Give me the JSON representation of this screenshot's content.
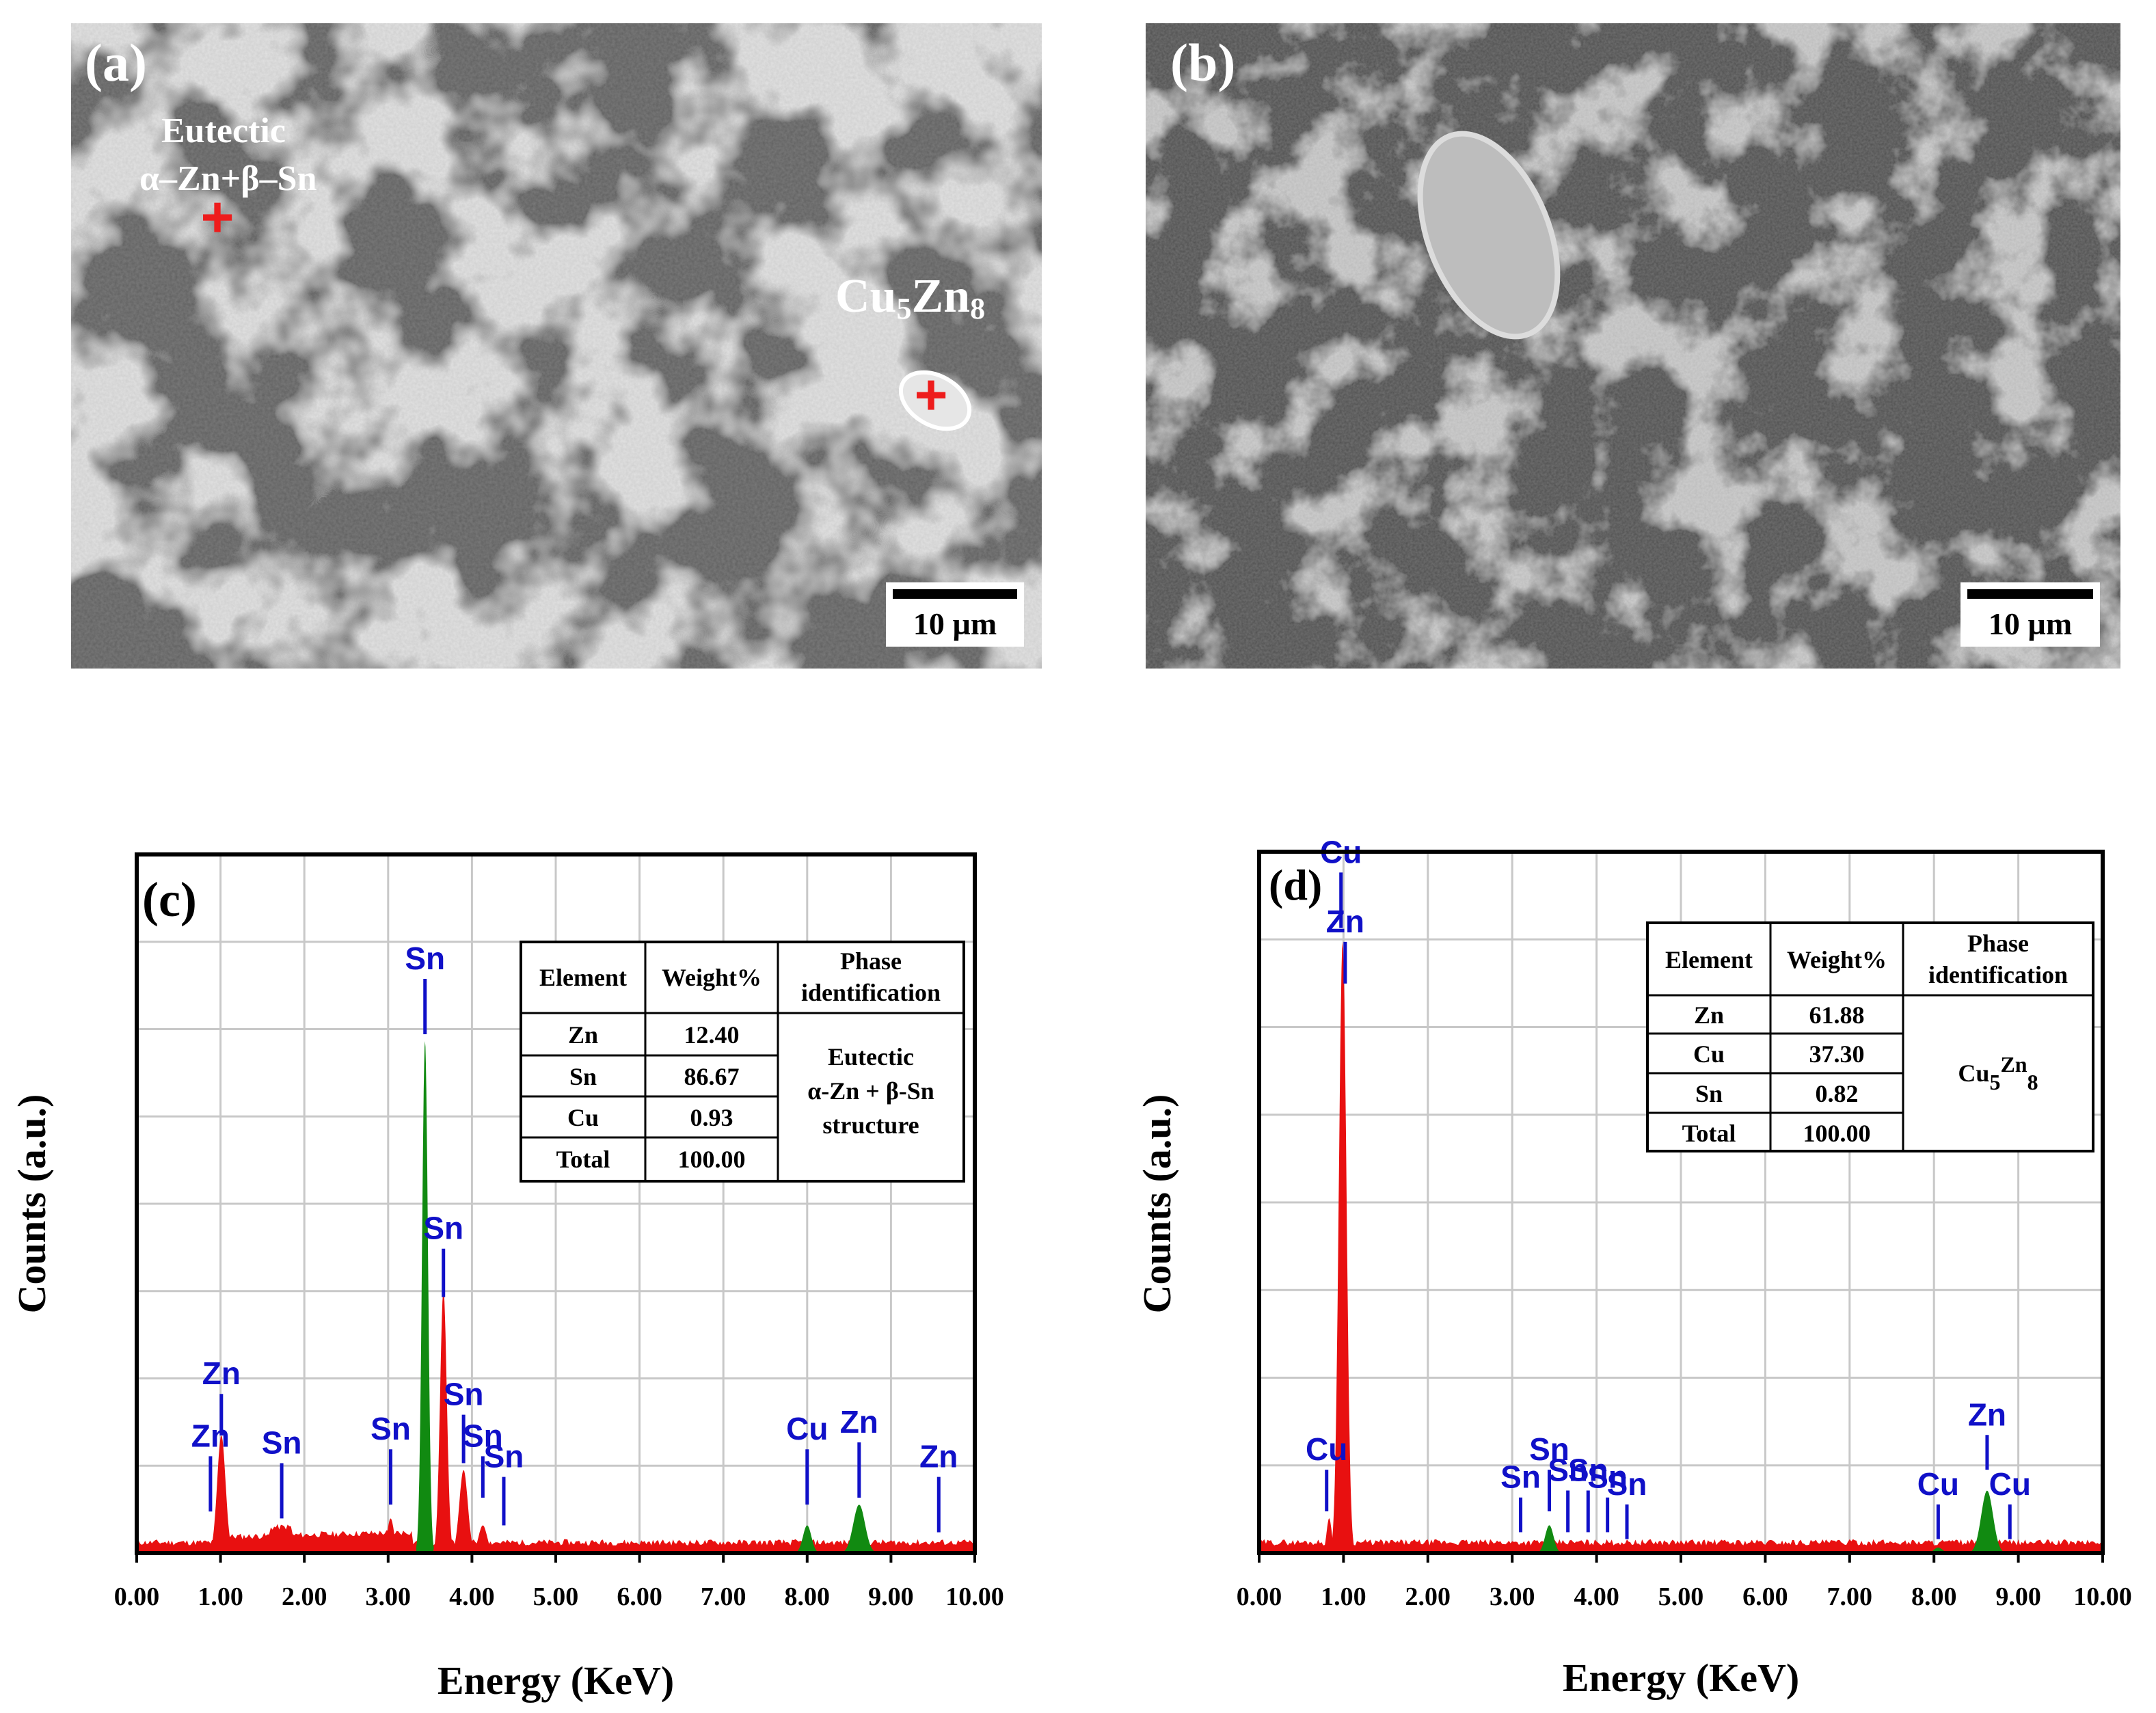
{
  "panels": {
    "a": {
      "label": "(a)",
      "annotation_eutectic": "Eutectic",
      "annotation_phase": "α–Zn+β–Sn",
      "annotation_cu": "Cu",
      "annotation_cu_sub": "5",
      "annotation_zn": "Zn",
      "annotation_zn_sub": "8",
      "marker_symbol": "+",
      "scale_bar": "10 µm"
    },
    "b": {
      "label": "(b)",
      "scale_bar": "10 µm"
    }
  },
  "colors": {
    "main_peak": "#e81010",
    "secondary_peak": "#118a11",
    "peak_marker": "#1010c8",
    "grid": "#c8c8c8"
  },
  "chart_data": [
    {
      "panel": "(c)",
      "type": "area",
      "title": "",
      "xlabel": "Energy (KeV)",
      "ylabel": "Counts (a.u.)",
      "xlim": [
        0,
        10
      ],
      "ylim": [
        0,
        100
      ],
      "xticks": [
        "0.00",
        "1.00",
        "2.00",
        "3.00",
        "4.00",
        "5.00",
        "6.00",
        "7.00",
        "8.00",
        "9.00",
        "10.00"
      ],
      "grid": true,
      "peaks": [
        {
          "energy": 1.01,
          "height": 17,
          "width": 0.05,
          "color": "red"
        },
        {
          "energy": 3.44,
          "height": 74,
          "width": 0.035,
          "color": "green"
        },
        {
          "energy": 3.66,
          "height": 38,
          "width": 0.04,
          "color": "red"
        },
        {
          "energy": 3.9,
          "height": 12,
          "width": 0.05,
          "color": "red"
        },
        {
          "energy": 4.13,
          "height": 4,
          "width": 0.05,
          "color": "red"
        },
        {
          "energy": 3.03,
          "height": 5,
          "width": 0.04,
          "color": "red"
        },
        {
          "energy": 8.0,
          "height": 4,
          "width": 0.05,
          "color": "green"
        },
        {
          "energy": 8.62,
          "height": 7,
          "width": 0.07,
          "color": "green"
        }
      ],
      "peak_markers": [
        {
          "label": "Zn",
          "energy": 0.88,
          "top": 14,
          "bottom": 6
        },
        {
          "label": "Zn",
          "energy": 1.01,
          "top": 23,
          "bottom": 17
        },
        {
          "label": "Sn",
          "energy": 1.73,
          "top": 13,
          "bottom": 5
        },
        {
          "label": "Sn",
          "energy": 3.03,
          "top": 15,
          "bottom": 7
        },
        {
          "label": "Sn",
          "energy": 3.44,
          "top": 83,
          "bottom": 75
        },
        {
          "label": "Sn",
          "energy": 3.66,
          "top": 44,
          "bottom": 37
        },
        {
          "label": "Sn",
          "energy": 3.9,
          "top": 20,
          "bottom": 13
        },
        {
          "label": "Sn",
          "energy": 4.13,
          "top": 14,
          "bottom": 8
        },
        {
          "label": "Sn",
          "energy": 4.38,
          "top": 11,
          "bottom": 4
        },
        {
          "label": "Cu",
          "energy": 8.0,
          "top": 15,
          "bottom": 7
        },
        {
          "label": "Zn",
          "energy": 8.62,
          "top": 16,
          "bottom": 8
        },
        {
          "label": "Zn",
          "energy": 9.57,
          "top": 11,
          "bottom": 3
        }
      ],
      "table": {
        "headers": [
          "Element",
          "Weight%",
          "Phase",
          "identification"
        ],
        "rows": [
          {
            "element": "Zn",
            "weight": "12.40"
          },
          {
            "element": "Sn",
            "weight": "86.67"
          },
          {
            "element": "Cu",
            "weight": "0.93"
          },
          {
            "element": "Total",
            "weight": "100.00"
          }
        ],
        "phase_lines": [
          "Eutectic",
          "α-Zn + β-Sn",
          "structure"
        ]
      }
    },
    {
      "panel": "(d)",
      "type": "area",
      "title": "",
      "xlabel": "Energy (KeV)",
      "ylabel": "Counts (a.u.)",
      "xlim": [
        0,
        10
      ],
      "ylim": [
        0,
        100
      ],
      "xticks": [
        "0.00",
        "1.00",
        "2.00",
        "3.00",
        "4.00",
        "5.00",
        "6.00",
        "7.00",
        "8.00",
        "9.00",
        "10.00"
      ],
      "grid": true,
      "peaks": [
        {
          "energy": 0.99,
          "height": 88,
          "width": 0.045,
          "color": "red"
        },
        {
          "energy": 0.83,
          "height": 5,
          "width": 0.03,
          "color": "red"
        },
        {
          "energy": 3.44,
          "height": 4,
          "width": 0.05,
          "color": "green"
        },
        {
          "energy": 3.7,
          "height": 1.5,
          "width": 0.05,
          "color": "red"
        },
        {
          "energy": 8.05,
          "height": 0.8,
          "width": 0.05,
          "color": "green"
        },
        {
          "energy": 8.63,
          "height": 9,
          "width": 0.07,
          "color": "green"
        }
      ],
      "peak_markers": [
        {
          "label": "Cu",
          "energy": 0.97,
          "top": 98,
          "bottom": 90
        },
        {
          "label": "Zn",
          "energy": 1.02,
          "top": 88,
          "bottom": 82
        },
        {
          "label": "Cu",
          "energy": 0.8,
          "top": 12,
          "bottom": 6
        },
        {
          "label": "Sn",
          "energy": 3.1,
          "top": 8,
          "bottom": 3
        },
        {
          "label": "Sn",
          "energy": 3.44,
          "top": 12,
          "bottom": 6
        },
        {
          "label": "Sn",
          "energy": 3.66,
          "top": 9,
          "bottom": 3
        },
        {
          "label": "Sn",
          "energy": 3.9,
          "top": 9,
          "bottom": 3
        },
        {
          "label": "Sn",
          "energy": 4.13,
          "top": 8,
          "bottom": 3
        },
        {
          "label": "Sn",
          "energy": 4.36,
          "top": 7,
          "bottom": 2
        },
        {
          "label": "Cu",
          "energy": 8.05,
          "top": 7,
          "bottom": 2
        },
        {
          "label": "Zn",
          "energy": 8.63,
          "top": 17,
          "bottom": 12
        },
        {
          "label": "Cu",
          "energy": 8.9,
          "top": 7,
          "bottom": 2
        }
      ],
      "table": {
        "headers": [
          "Element",
          "Weight%",
          "Phase",
          "identification"
        ],
        "rows": [
          {
            "element": "Zn",
            "weight": "61.88"
          },
          {
            "element": "Cu",
            "weight": "37.30"
          },
          {
            "element": "Sn",
            "weight": "0.82"
          },
          {
            "element": "Total",
            "weight": "100.00"
          }
        ],
        "phase_formula": {
          "cu": "Cu",
          "cu_sub": "5",
          "zn": "Zn",
          "zn_sub": "8"
        }
      }
    }
  ]
}
